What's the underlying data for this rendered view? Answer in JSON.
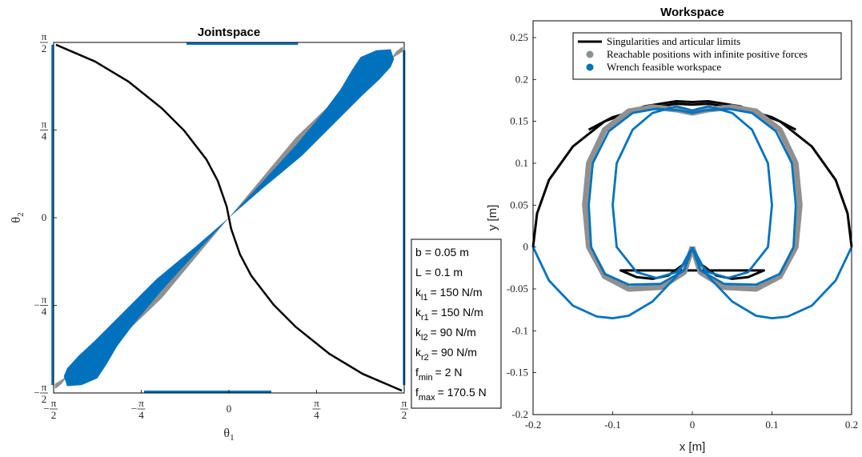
{
  "chart_data": [
    {
      "type": "area",
      "title": "Jointspace",
      "xlabel": "θ",
      "xlabel_sub": "1",
      "ylabel": "θ",
      "ylabel_sub": "2",
      "xlim": [
        -1.5708,
        1.5708
      ],
      "ylim": [
        -1.5708,
        1.5708
      ],
      "x_ticks": [
        {
          "value": -1.5708,
          "sign": "−",
          "num": "π",
          "den": "2"
        },
        {
          "value": -0.7854,
          "sign": "−",
          "num": "π",
          "den": "4"
        },
        {
          "value": 0,
          "plain": "0"
        },
        {
          "value": 0.7854,
          "sign": "",
          "num": "π",
          "den": "4"
        },
        {
          "value": 1.5708,
          "sign": "",
          "num": "π",
          "den": "2"
        }
      ],
      "y_ticks": [
        {
          "value": -1.5708,
          "sign": "−",
          "num": "π",
          "den": "2"
        },
        {
          "value": -0.7854,
          "sign": "−",
          "num": "π",
          "den": "4"
        },
        {
          "value": 0,
          "plain": "0"
        },
        {
          "value": 0.7854,
          "sign": "",
          "num": "π",
          "den": "4"
        },
        {
          "value": 1.5708,
          "sign": "",
          "num": "π",
          "den": "2"
        }
      ],
      "grid": false,
      "colors": {
        "singularity": "#000000",
        "reachable": "#909090",
        "feasible": "#0072bd"
      },
      "singularity_curve": {
        "x": [
          -1.55,
          -1.2,
          -0.9,
          -0.6,
          -0.4,
          -0.2,
          -0.1,
          -0.02,
          0,
          0.02,
          0.1,
          0.2,
          0.4,
          0.6,
          0.9,
          1.2,
          1.55
        ],
        "y": [
          1.55,
          1.4,
          1.22,
          0.98,
          0.78,
          0.52,
          0.33,
          0.1,
          0,
          -0.1,
          -0.33,
          -0.52,
          -0.78,
          -0.98,
          -1.22,
          -1.4,
          -1.55
        ]
      },
      "reachable_region": {
        "x": [
          0,
          0.35,
          0.75,
          1.1,
          1.42,
          1.5,
          1.55,
          1.56,
          1.56,
          1.1,
          0.6,
          0.25,
          0,
          -0.35,
          -0.75,
          -1.1,
          -1.42,
          -1.5,
          -1.55,
          -1.56,
          -1.56,
          -1.1,
          -0.6,
          -0.25,
          0
        ],
        "y": [
          0,
          0.33,
          0.7,
          1.05,
          1.38,
          1.49,
          1.53,
          1.53,
          1.49,
          1.2,
          0.72,
          0.3,
          0,
          -0.33,
          -0.7,
          -1.05,
          -1.38,
          -1.49,
          -1.53,
          -1.53,
          -1.49,
          -1.2,
          -0.72,
          -0.3,
          0
        ]
      },
      "feasible_region": {
        "x": [
          0,
          0.3,
          0.6,
          0.85,
          1.0,
          1.1,
          1.18,
          1.32,
          1.45,
          1.48,
          1.45,
          1.35,
          1.2,
          0.95,
          0.65,
          0.3,
          0,
          -0.3,
          -0.6,
          -0.85,
          -1.0,
          -1.1,
          -1.18,
          -1.32,
          -1.45,
          -1.48,
          -1.45,
          -1.35,
          -1.2,
          -0.95,
          -0.65,
          -0.3,
          0
        ],
        "y": [
          0,
          0.32,
          0.65,
          0.95,
          1.15,
          1.32,
          1.44,
          1.5,
          1.51,
          1.42,
          1.35,
          1.24,
          1.1,
          0.85,
          0.55,
          0.26,
          0,
          -0.32,
          -0.65,
          -0.95,
          -1.15,
          -1.32,
          -1.44,
          -1.5,
          -1.51,
          -1.42,
          -1.35,
          -1.24,
          -1.1,
          -0.85,
          -0.55,
          -0.26,
          0
        ]
      },
      "boundary_segments": [
        {
          "x": [
            -1.58,
            -1.58
          ],
          "y": [
            -1.5,
            1.55
          ]
        },
        {
          "x": [
            1.57,
            1.57
          ],
          "y": [
            -1.5,
            1.5
          ]
        },
        {
          "x": [
            -0.38,
            0.62
          ],
          "y": [
            1.56,
            1.56
          ]
        },
        {
          "x": [
            -0.76,
            0.38
          ],
          "y": [
            -1.56,
            -1.56
          ]
        }
      ],
      "parameters": [
        {
          "name": "b",
          "sub": "",
          "value": "= 0.05 m"
        },
        {
          "name": "L",
          "sub": "",
          "value": "= 0.1 m"
        },
        {
          "name": "k",
          "sub": "l1",
          "value": "= 150 N/m"
        },
        {
          "name": "k",
          "sub": "r1",
          "value": "= 150 N/m"
        },
        {
          "name": "k",
          "sub": "l2",
          "value": "= 90 N/m"
        },
        {
          "name": "k",
          "sub": "r2",
          "value": "= 90 N/m"
        },
        {
          "name": "f",
          "sub": "min",
          "value": "= 2 N"
        },
        {
          "name": "f",
          "sub": "max",
          "value": "= 170.5 N"
        }
      ]
    },
    {
      "type": "line",
      "title": "Workspace",
      "xlabel": "x [m]",
      "ylabel": "y [m]",
      "xlim": [
        -0.2,
        0.2
      ],
      "ylim": [
        -0.2,
        0.27
      ],
      "x_ticks": [
        -0.2,
        -0.1,
        0,
        0.1,
        0.2
      ],
      "x_tick_labels": [
        "-0.2",
        "-0.1",
        "0",
        "0.1",
        "0.2"
      ],
      "y_ticks": [
        -0.2,
        -0.15,
        -0.1,
        -0.05,
        0,
        0.05,
        0.1,
        0.15,
        0.2,
        0.25
      ],
      "y_tick_labels": [
        "-0.2",
        "-0.15",
        "-0.1",
        "-0.05",
        "0",
        "0.05",
        "0.1",
        "0.15",
        "0.2",
        "0.25"
      ],
      "grid": false,
      "legend_position": "top-right",
      "legend": [
        {
          "label": "Singularities and articular limits",
          "color": "#000000",
          "marker": "line"
        },
        {
          "label": "Reachable positions with infinite positive forces",
          "color": "#909090",
          "marker": "dot"
        },
        {
          "label": "Wrench feasible workspace",
          "color": "#0072bd",
          "marker": "dot"
        }
      ],
      "series": [
        {
          "role": "singularity",
          "color": "#000000",
          "x": [
            -0.2,
            -0.195,
            -0.18,
            -0.15,
            -0.11,
            -0.06,
            -0.02,
            0,
            0.02,
            0.06,
            0.11,
            0.15,
            0.18,
            0.195,
            0.2
          ],
          "y": [
            0,
            0.04,
            0.08,
            0.12,
            0.15,
            0.168,
            0.174,
            0.173,
            0.174,
            0.168,
            0.15,
            0.12,
            0.08,
            0.04,
            0
          ]
        },
        {
          "role": "singularity-inner",
          "color": "#000000",
          "x": [
            -0.13,
            -0.1,
            -0.07,
            -0.04,
            -0.02,
            0,
            0.02,
            0.04,
            0.07,
            0.1,
            0.13
          ],
          "y": [
            0.14,
            0.155,
            0.163,
            0.168,
            0.171,
            0.17,
            0.171,
            0.168,
            0.163,
            0.155,
            0.14
          ]
        },
        {
          "role": "singularity-lower",
          "color": "#000000",
          "x": [
            0,
            -0.01,
            -0.03,
            -0.05,
            -0.07,
            -0.09,
            0.09,
            0.07,
            0.05,
            0.03,
            0.01,
            0
          ],
          "y": [
            0,
            -0.02,
            -0.034,
            -0.038,
            -0.036,
            -0.028,
            -0.028,
            -0.036,
            -0.038,
            -0.034,
            -0.02,
            0
          ]
        },
        {
          "role": "reachable",
          "color": "#909090",
          "x": [
            0,
            -0.01,
            -0.04,
            -0.08,
            -0.11,
            -0.13,
            -0.135,
            -0.13,
            -0.11,
            -0.08,
            -0.05,
            -0.02,
            0,
            0.02,
            0.05,
            0.08,
            0.11,
            0.13,
            0.135,
            0.13,
            0.11,
            0.08,
            0.04,
            0.01,
            0
          ],
          "y": [
            0,
            -0.03,
            -0.048,
            -0.05,
            -0.035,
            0.0,
            0.05,
            0.1,
            0.14,
            0.162,
            0.167,
            0.164,
            0.16,
            0.164,
            0.167,
            0.162,
            0.14,
            0.1,
            0.05,
            0.0,
            -0.035,
            -0.05,
            -0.048,
            -0.03,
            0
          ]
        },
        {
          "role": "feasible-outer",
          "color": "#0072bd",
          "x": [
            0,
            -0.01,
            -0.04,
            -0.08,
            -0.11,
            -0.127,
            -0.13,
            -0.125,
            -0.105,
            -0.075,
            -0.045,
            -0.015,
            0,
            0.015,
            0.045,
            0.075,
            0.105,
            0.125,
            0.13,
            0.127,
            0.11,
            0.08,
            0.04,
            0.01,
            0
          ],
          "y": [
            0,
            -0.028,
            -0.044,
            -0.045,
            -0.032,
            0.0,
            0.05,
            0.1,
            0.138,
            0.16,
            0.165,
            0.163,
            0.16,
            0.163,
            0.165,
            0.16,
            0.138,
            0.1,
            0.05,
            0.0,
            -0.032,
            -0.045,
            -0.044,
            -0.028,
            0
          ]
        },
        {
          "role": "feasible-inner",
          "color": "#0072bd",
          "x": [
            0,
            -0.005,
            -0.02,
            -0.045,
            -0.07,
            -0.095,
            -0.1,
            -0.095,
            -0.075,
            -0.05,
            -0.02,
            0,
            0.02,
            0.05,
            0.075,
            0.095,
            0.1,
            0.095,
            0.07,
            0.045,
            0.02,
            0.005,
            0
          ],
          "y": [
            0,
            -0.015,
            -0.03,
            -0.037,
            -0.03,
            0.0,
            0.05,
            0.1,
            0.14,
            0.16,
            0.168,
            0.163,
            0.168,
            0.16,
            0.14,
            0.1,
            0.05,
            0.0,
            -0.03,
            -0.037,
            -0.03,
            -0.015,
            0
          ]
        },
        {
          "role": "feasible-lower",
          "color": "#0072bd",
          "x": [
            -0.2,
            -0.18,
            -0.15,
            -0.12,
            -0.1,
            -0.08,
            -0.05,
            -0.02,
            -0.003,
            0.003,
            0.02,
            0.05,
            0.08,
            0.1,
            0.12,
            0.15,
            0.18,
            0.2
          ],
          "y": [
            0,
            -0.04,
            -0.07,
            -0.083,
            -0.085,
            -0.082,
            -0.065,
            -0.035,
            -0.005,
            -0.005,
            -0.035,
            -0.065,
            -0.082,
            -0.085,
            -0.083,
            -0.07,
            -0.04,
            0
          ]
        }
      ]
    }
  ]
}
